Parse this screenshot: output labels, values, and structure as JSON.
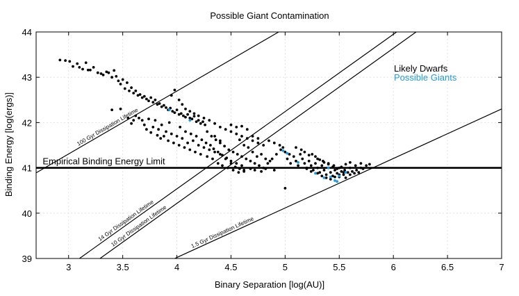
{
  "chart_data": {
    "type": "scatter",
    "title": "Possible Giant Contamination",
    "xlabel": "Binary Separation [log(AU)]",
    "ylabel": "Binding Energy [log(ergs)]",
    "xlim": [
      2.7,
      7
    ],
    "ylim": [
      39,
      44
    ],
    "xticks": [
      "3",
      "3.5",
      "4",
      "4.5",
      "5",
      "5.5",
      "6",
      "6.5",
      "7"
    ],
    "yticks": [
      "39",
      "40",
      "41",
      "42",
      "43",
      "44"
    ],
    "grid": true,
    "legend": {
      "placement": "top-right",
      "entries": [
        {
          "label": "Likely Dwarfs",
          "color": "#000000"
        },
        {
          "label": "Possible Giants",
          "color": "#1f9ae0"
        }
      ]
    },
    "empirical_limit": {
      "label": "Empirical Binding Energy Limit",
      "y": 41.0
    },
    "lifetime_lines": [
      {
        "label": "100 Gyr Dissipation Lifetime",
        "points": [
          [
            2.7,
            40.89
          ],
          [
            4.94,
            44.0
          ]
        ]
      },
      {
        "label": "14 Gyr Dissipation Lifetime",
        "points": [
          [
            3.1,
            39.0
          ],
          [
            6.03,
            44.0
          ]
        ]
      },
      {
        "label": "10 Gyr Dissipation Lifetime",
        "points": [
          [
            3.29,
            39.0
          ],
          [
            6.21,
            44.0
          ]
        ]
      },
      {
        "label": "1.5 Gyr Dissipation Lifetime",
        "points": [
          [
            3.98,
            39.0
          ],
          [
            7.0,
            42.3
          ]
        ]
      }
    ],
    "series": [
      {
        "name": "Likely Dwarfs",
        "color": "#000000",
        "points": [
          [
            2.92,
            43.38
          ],
          [
            2.97,
            43.37
          ],
          [
            3.01,
            43.35
          ],
          [
            3.04,
            43.24
          ],
          [
            3.08,
            43.3
          ],
          [
            3.1,
            43.22
          ],
          [
            3.13,
            43.18
          ],
          [
            3.16,
            43.32
          ],
          [
            3.18,
            43.16
          ],
          [
            3.2,
            43.16
          ],
          [
            3.23,
            43.22
          ],
          [
            3.27,
            43.1
          ],
          [
            3.3,
            43.08
          ],
          [
            3.32,
            43.05
          ],
          [
            3.35,
            43.12
          ],
          [
            3.37,
            43.1
          ],
          [
            3.4,
            43.0
          ],
          [
            3.42,
            43.15
          ],
          [
            3.44,
            43.02
          ],
          [
            3.46,
            42.92
          ],
          [
            3.48,
            42.85
          ],
          [
            3.5,
            42.95
          ],
          [
            3.52,
            42.75
          ],
          [
            3.54,
            42.88
          ],
          [
            3.56,
            42.7
          ],
          [
            3.58,
            42.77
          ],
          [
            3.6,
            42.65
          ],
          [
            3.62,
            42.7
          ],
          [
            3.64,
            42.6
          ],
          [
            3.66,
            42.62
          ],
          [
            3.68,
            42.55
          ],
          [
            3.7,
            42.58
          ],
          [
            3.72,
            42.52
          ],
          [
            3.74,
            42.48
          ],
          [
            3.76,
            42.55
          ],
          [
            3.78,
            42.45
          ],
          [
            3.8,
            42.5
          ],
          [
            3.82,
            42.4
          ],
          [
            3.84,
            42.42
          ],
          [
            3.86,
            42.35
          ],
          [
            3.88,
            42.38
          ],
          [
            3.9,
            42.33
          ],
          [
            3.92,
            42.28
          ],
          [
            3.94,
            42.32
          ],
          [
            3.96,
            42.25
          ],
          [
            3.98,
            42.22
          ],
          [
            4.0,
            42.28
          ],
          [
            4.02,
            42.18
          ],
          [
            4.04,
            42.2
          ],
          [
            4.06,
            42.15
          ],
          [
            4.08,
            42.12
          ],
          [
            4.1,
            42.18
          ],
          [
            4.12,
            42.1
          ],
          [
            4.14,
            42.08
          ],
          [
            4.16,
            42.14
          ],
          [
            4.18,
            42.02
          ],
          [
            4.2,
            42.05
          ],
          [
            4.22,
            41.98
          ],
          [
            4.24,
            42.02
          ],
          [
            4.26,
            41.95
          ],
          [
            3.48,
            42.3
          ],
          [
            3.6,
            42.05
          ],
          [
            3.65,
            42.1
          ],
          [
            3.7,
            41.95
          ],
          [
            3.74,
            42.08
          ],
          [
            3.78,
            41.9
          ],
          [
            3.8,
            42.05
          ],
          [
            3.83,
            41.85
          ],
          [
            3.86,
            41.95
          ],
          [
            3.88,
            41.7
          ],
          [
            3.9,
            41.8
          ],
          [
            3.92,
            41.6
          ],
          [
            3.95,
            41.75
          ],
          [
            3.97,
            41.55
          ],
          [
            4.0,
            41.7
          ],
          [
            4.02,
            41.5
          ],
          [
            4.05,
            41.65
          ],
          [
            4.07,
            41.45
          ],
          [
            4.1,
            41.55
          ],
          [
            4.12,
            41.4
          ],
          [
            4.15,
            41.6
          ],
          [
            4.17,
            41.35
          ],
          [
            4.2,
            41.5
          ],
          [
            4.22,
            41.3
          ],
          [
            4.25,
            41.45
          ],
          [
            4.28,
            41.25
          ],
          [
            4.3,
            41.4
          ],
          [
            4.33,
            41.2
          ],
          [
            4.35,
            41.35
          ],
          [
            4.38,
            41.1
          ],
          [
            4.4,
            41.3
          ],
          [
            4.42,
            41.05
          ],
          [
            4.45,
            41.2
          ],
          [
            4.47,
            41.0
          ],
          [
            4.5,
            41.15
          ],
          [
            4.52,
            40.95
          ],
          [
            4.55,
            41.1
          ],
          [
            4.57,
            40.9
          ],
          [
            4.6,
            41.05
          ],
          [
            4.62,
            40.95
          ],
          [
            3.95,
            42.6
          ],
          [
            3.98,
            42.72
          ],
          [
            4.02,
            42.5
          ],
          [
            4.05,
            42.4
          ],
          [
            4.08,
            42.3
          ],
          [
            4.12,
            42.25
          ],
          [
            4.16,
            42.2
          ],
          [
            4.2,
            42.15
          ],
          [
            4.25,
            42.1
          ],
          [
            4.3,
            42.05
          ],
          [
            4.35,
            41.98
          ],
          [
            4.4,
            41.9
          ],
          [
            4.45,
            41.85
          ],
          [
            4.5,
            41.8
          ],
          [
            4.55,
            41.75
          ],
          [
            4.6,
            41.7
          ],
          [
            4.65,
            41.65
          ],
          [
            4.7,
            41.6
          ],
          [
            4.75,
            41.55
          ],
          [
            4.8,
            41.5
          ],
          [
            4.28,
            41.8
          ],
          [
            4.32,
            41.7
          ],
          [
            4.36,
            41.62
          ],
          [
            4.4,
            41.55
          ],
          [
            4.44,
            41.48
          ],
          [
            4.48,
            41.4
          ],
          [
            4.52,
            41.35
          ],
          [
            4.56,
            41.3
          ],
          [
            4.6,
            41.25
          ],
          [
            4.64,
            41.2
          ],
          [
            4.68,
            41.15
          ],
          [
            4.72,
            41.1
          ],
          [
            4.76,
            41.05
          ],
          [
            4.8,
            41.0
          ],
          [
            4.84,
            41.1
          ],
          [
            4.88,
            41.2
          ],
          [
            4.92,
            41.3
          ],
          [
            4.96,
            41.4
          ],
          [
            5.0,
            41.35
          ],
          [
            5.04,
            41.3
          ],
          [
            4.5,
            41.95
          ],
          [
            4.55,
            41.9
          ],
          [
            4.58,
            41.62
          ],
          [
            4.62,
            41.5
          ],
          [
            4.66,
            41.45
          ],
          [
            4.7,
            41.35
          ],
          [
            4.74,
            41.25
          ],
          [
            4.78,
            41.3
          ],
          [
            4.82,
            41.2
          ],
          [
            4.86,
            41.15
          ],
          [
            5.02,
            41.2
          ],
          [
            5.05,
            41.1
          ],
          [
            5.08,
            41.25
          ],
          [
            5.1,
            41.15
          ],
          [
            5.12,
            41.05
          ],
          [
            5.14,
            41.3
          ],
          [
            5.16,
            41.2
          ],
          [
            5.18,
            41.1
          ],
          [
            5.2,
            41.0
          ],
          [
            5.22,
            41.15
          ],
          [
            5.24,
            41.05
          ],
          [
            5.26,
            40.95
          ],
          [
            5.28,
            41.1
          ],
          [
            5.3,
            41.0
          ],
          [
            5.32,
            40.9
          ],
          [
            5.34,
            41.05
          ],
          [
            5.36,
            40.95
          ],
          [
            5.38,
            40.85
          ],
          [
            5.4,
            41.0
          ],
          [
            5.42,
            40.9
          ],
          [
            5.44,
            40.82
          ],
          [
            5.46,
            40.95
          ],
          [
            5.48,
            40.88
          ],
          [
            5.5,
            40.8
          ],
          [
            5.52,
            40.92
          ],
          [
            5.54,
            40.85
          ],
          [
            5.56,
            40.78
          ],
          [
            5.58,
            40.9
          ],
          [
            5.6,
            40.85
          ],
          [
            5.62,
            40.92
          ],
          [
            5.64,
            40.88
          ],
          [
            5.66,
            40.95
          ],
          [
            5.68,
            40.9
          ],
          [
            5.7,
            41.0
          ],
          [
            5.72,
            40.98
          ],
          [
            5.75,
            41.05
          ],
          [
            5.78,
            41.08
          ],
          [
            5.3,
            41.2
          ],
          [
            5.35,
            41.15
          ],
          [
            5.4,
            41.1
          ],
          [
            5.45,
            41.05
          ],
          [
            5.5,
            41.0
          ],
          [
            5.55,
            40.95
          ],
          [
            5.6,
            41.0
          ],
          [
            5.65,
            41.05
          ],
          [
            5.7,
            41.1
          ],
          [
            5.25,
            41.3
          ],
          [
            5.28,
            41.25
          ],
          [
            5.32,
            41.18
          ],
          [
            5.36,
            41.12
          ],
          [
            5.4,
            41.08
          ],
          [
            5.44,
            41.02
          ],
          [
            5.48,
            40.98
          ],
          [
            5.52,
            41.02
          ],
          [
            5.56,
            41.08
          ],
          [
            5.6,
            41.12
          ],
          [
            5.15,
            41.4
          ],
          [
            5.18,
            41.35
          ],
          [
            5.22,
            41.28
          ],
          [
            5.1,
            41.45
          ],
          [
            4.85,
            41.6
          ],
          [
            4.9,
            41.55
          ],
          [
            4.95,
            41.5
          ],
          [
            4.98,
            41.45
          ],
          [
            4.7,
            41.7
          ],
          [
            4.75,
            41.65
          ],
          [
            4.65,
            41.85
          ],
          [
            4.6,
            41.92
          ],
          [
            4.4,
            41.6
          ],
          [
            4.35,
            41.7
          ],
          [
            3.4,
            42.28
          ],
          [
            3.55,
            42.1
          ],
          [
            3.58,
            41.98
          ],
          [
            3.62,
            42.15
          ],
          [
            3.68,
            42.05
          ],
          [
            3.72,
            41.85
          ],
          [
            3.76,
            41.78
          ],
          [
            3.82,
            41.72
          ],
          [
            3.85,
            41.65
          ],
          [
            3.93,
            42.0
          ],
          [
            4.03,
            41.9
          ],
          [
            4.08,
            41.8
          ],
          [
            4.13,
            41.75
          ],
          [
            4.18,
            41.7
          ],
          [
            4.23,
            41.62
          ],
          [
            4.27,
            41.55
          ],
          [
            4.31,
            41.5
          ],
          [
            4.34,
            41.42
          ],
          [
            4.38,
            41.35
          ],
          [
            4.42,
            41.28
          ],
          [
            4.46,
            41.22
          ],
          [
            4.5,
            41.1
          ],
          [
            4.54,
            41.02
          ],
          [
            4.58,
            40.98
          ],
          [
            4.62,
            40.92
          ],
          [
            4.68,
            40.98
          ],
          [
            4.72,
            40.95
          ],
          [
            4.78,
            40.92
          ],
          [
            4.82,
            40.98
          ],
          [
            4.9,
            40.95
          ],
          [
            5.0,
            40.55
          ],
          [
            5.2,
            40.98
          ],
          [
            5.24,
            40.92
          ],
          [
            5.3,
            40.88
          ],
          [
            5.34,
            40.82
          ],
          [
            5.38,
            40.78
          ],
          [
            5.42,
            40.75
          ],
          [
            5.46,
            40.8
          ],
          [
            5.5,
            40.85
          ],
          [
            5.54,
            40.9
          ]
        ]
      },
      {
        "name": "Possible Giants",
        "color": "#1f9ae0",
        "points": [
          [
            3.93,
            42.28
          ],
          [
            4.12,
            42.05
          ],
          [
            4.98,
            41.38
          ],
          [
            5.02,
            41.32
          ],
          [
            5.12,
            41.12
          ],
          [
            5.28,
            40.88
          ],
          [
            5.36,
            40.78
          ],
          [
            5.42,
            40.8
          ],
          [
            5.46,
            40.72
          ],
          [
            5.48,
            40.7
          ],
          [
            5.5,
            40.82
          ],
          [
            5.56,
            40.9
          ],
          [
            5.4,
            41.0
          ]
        ]
      }
    ]
  }
}
